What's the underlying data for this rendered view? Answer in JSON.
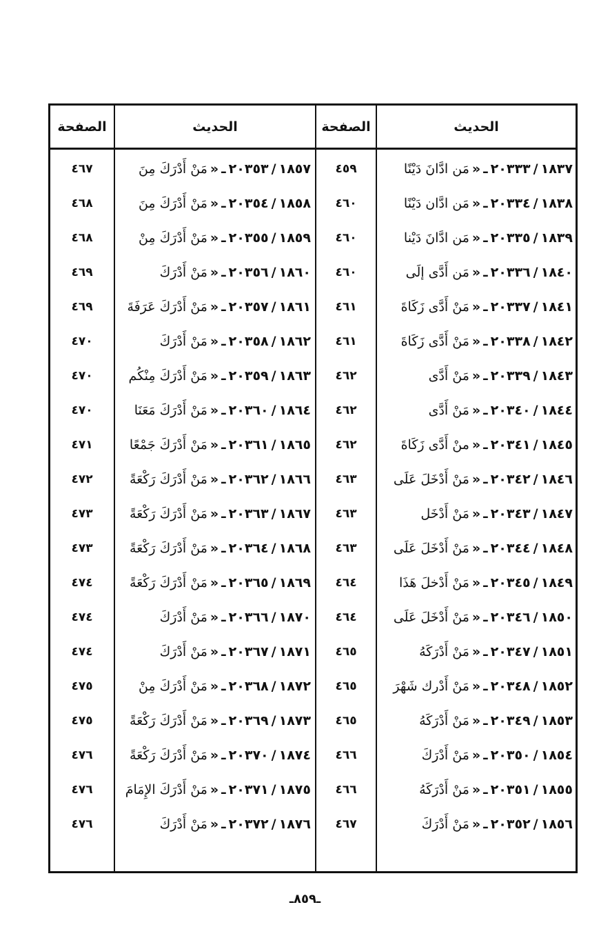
{
  "headers": {
    "hadith": "الحديث",
    "page": "الصفحة"
  },
  "right_column": [
    {
      "idx": "١٨٣٧",
      "num": "٢٠٣٣٣",
      "text": "مَن ادَّانَ دَيْنًا",
      "page": "٤٥٩"
    },
    {
      "idx": "١٨٣٨",
      "num": "٢٠٣٣٤",
      "text": "مَن ادَّان دَيْنًا",
      "page": "٤٦٠"
    },
    {
      "idx": "١٨٣٩",
      "num": "٢٠٣٣٥",
      "text": "مَن ادَّانَ دَيْنا",
      "page": "٤٦٠"
    },
    {
      "idx": "١٨٤٠",
      "num": "٢٠٣٣٦",
      "text": "مَن أَدَّى إلَى",
      "page": "٤٦٠"
    },
    {
      "idx": "١٨٤١",
      "num": "٢٠٣٣٧",
      "text": "مَنْ أَدَّى زَكَاةَ",
      "page": "٤٦١"
    },
    {
      "idx": "١٨٤٢",
      "num": "٢٠٣٣٨",
      "text": "مَنْ أَدَّى زَكَاةَ",
      "page": "٤٦١"
    },
    {
      "idx": "١٨٤٣",
      "num": "٢٠٣٣٩",
      "text": "مَنْ أَدَّى",
      "page": "٤٦٢"
    },
    {
      "idx": "١٨٤٤",
      "num": "٢٠٣٤٠",
      "text": "مَنْ أَدَّى",
      "page": "٤٦٢"
    },
    {
      "idx": "١٨٤٥",
      "num": "٢٠٣٤١",
      "text": "منْ أَدَّى زَكَاةَ",
      "page": "٤٦٢"
    },
    {
      "idx": "١٨٤٦",
      "num": "٢٠٣٤٢",
      "text": "مَنْ أَدْخَلَ عَلَى",
      "page": "٤٦٣"
    },
    {
      "idx": "١٨٤٧",
      "num": "٢٠٣٤٣",
      "text": "مَنْ أَدْخَل",
      "page": "٤٦٣"
    },
    {
      "idx": "١٨٤٨",
      "num": "٢٠٣٤٤",
      "text": "مَنْ أَدْخَلَ عَلَى",
      "page": "٤٦٣"
    },
    {
      "idx": "١٨٤٩",
      "num": "٢٠٣٤٥",
      "text": "مَنْ أَدْخلَ هَذَا",
      "page": "٤٦٤"
    },
    {
      "idx": "١٨٥٠",
      "num": "٢٠٣٤٦",
      "text": "مَنْ أَدْخَلَ عَلَى",
      "page": "٤٦٤"
    },
    {
      "idx": "١٨٥١",
      "num": "٢٠٣٤٧",
      "text": "مَنْ أَدْرَكَهُ",
      "page": "٤٦٥"
    },
    {
      "idx": "١٨٥٢",
      "num": "٢٠٣٤٨",
      "text": "مَنْ أَدْرك شَهْرَ",
      "page": "٤٦٥"
    },
    {
      "idx": "١٨٥٣",
      "num": "٢٠٣٤٩",
      "text": "مَنْ أَدْرَكَهُ",
      "page": "٤٦٥"
    },
    {
      "idx": "١٨٥٤",
      "num": "٢٠٣٥٠",
      "text": "مَنْ أَدْرَكَ",
      "page": "٤٦٦"
    },
    {
      "idx": "١٨٥٥",
      "num": "٢٠٣٥١",
      "text": "مَنْ أَدْرَكَهُ",
      "page": "٤٦٦"
    },
    {
      "idx": "١٨٥٦",
      "num": "٢٠٣٥٢",
      "text": "مَنْ أَدْرَكَ",
      "page": "٤٦٧"
    }
  ],
  "left_column": [
    {
      "idx": "١٨٥٧",
      "num": "٢٠٣٥٣",
      "text": "مَنْ أَدْرَكَ مِنَ",
      "page": "٤٦٧"
    },
    {
      "idx": "١٨٥٨",
      "num": "٢٠٣٥٤",
      "text": "مَنْ أَدْرَكَ مِنَ",
      "page": "٤٦٨"
    },
    {
      "idx": "١٨٥٩",
      "num": "٢٠٣٥٥",
      "text": "مَنْ أَدْرَكَ مِنْ",
      "page": "٤٦٨"
    },
    {
      "idx": "١٨٦٠",
      "num": "٢٠٣٥٦",
      "text": "مَنْ أَدْرَكَ",
      "page": "٤٦٩"
    },
    {
      "idx": "١٨٦١",
      "num": "٢٠٣٥٧",
      "text": "مَنْ أَدْرَكَ عَرَفَةَ",
      "page": "٤٦٩"
    },
    {
      "idx": "١٨٦٢",
      "num": "٢٠٣٥٨",
      "text": "مَنْ أَدْرَكَ",
      "page": "٤٧٠"
    },
    {
      "idx": "١٨٦٣",
      "num": "٢٠٣٥٩",
      "text": "مَنْ أَدْرَكَ مِنْكُم",
      "page": "٤٧٠"
    },
    {
      "idx": "١٨٦٤",
      "num": "٢٠٣٦٠",
      "text": "مَنْ أَدْرَكَ مَعَنَا",
      "page": "٤٧٠"
    },
    {
      "idx": "١٨٦٥",
      "num": "٢٠٣٦١",
      "text": "مَنْ أَدْرَكَ جَمْعًا",
      "page": "٤٧١"
    },
    {
      "idx": "١٨٦٦",
      "num": "٢٠٣٦٢",
      "text": "مَنْ أَدْرَكَ رَكْعَةً",
      "page": "٤٧٢"
    },
    {
      "idx": "١٨٦٧",
      "num": "٢٠٣٦٣",
      "text": "مَنْ أَدْرَكَ رَكْعَةً",
      "page": "٤٧٣"
    },
    {
      "idx": "١٨٦٨",
      "num": "٢٠٣٦٤",
      "text": "مَنْ أَدْرَكَ رَكْعَةً",
      "page": "٤٧٣"
    },
    {
      "idx": "١٨٦٩",
      "num": "٢٠٣٦٥",
      "text": "مَنْ أَدْرَكَ رَكْعَةً",
      "page": "٤٧٤"
    },
    {
      "idx": "١٨٧٠",
      "num": "٢٠٣٦٦",
      "text": "مَنْ أَدْرَكَ",
      "page": "٤٧٤"
    },
    {
      "idx": "١٨٧١",
      "num": "٢٠٣٦٧",
      "text": "مَنْ أَدْرَكَ",
      "page": "٤٧٤"
    },
    {
      "idx": "١٨٧٢",
      "num": "٢٠٣٦٨",
      "text": "مَنْ أَدْرَكَ مِنْ",
      "page": "٤٧٥"
    },
    {
      "idx": "١٨٧٣",
      "num": "٢٠٣٦٩",
      "text": "مَنْ أَدْرَكَ رَكْعَةً",
      "page": "٤٧٥"
    },
    {
      "idx": "١٨٧٤",
      "num": "٢٠٣٧٠",
      "text": "مَنْ أَدْرَكَ رَكْعَةً",
      "page": "٤٧٦"
    },
    {
      "idx": "١٨٧٥",
      "num": "٢٠٣٧١",
      "text": "مَنْ أَدْرَكَ الإِمَامَ",
      "page": "٤٧٦"
    },
    {
      "idx": "١٨٧٦",
      "num": "٢٠٣٧٢",
      "text": "مَنْ أَدْرَكَ",
      "page": "٤٧٦"
    }
  ],
  "footer": {
    "page_number": "ـ٨٥٩ـ"
  }
}
